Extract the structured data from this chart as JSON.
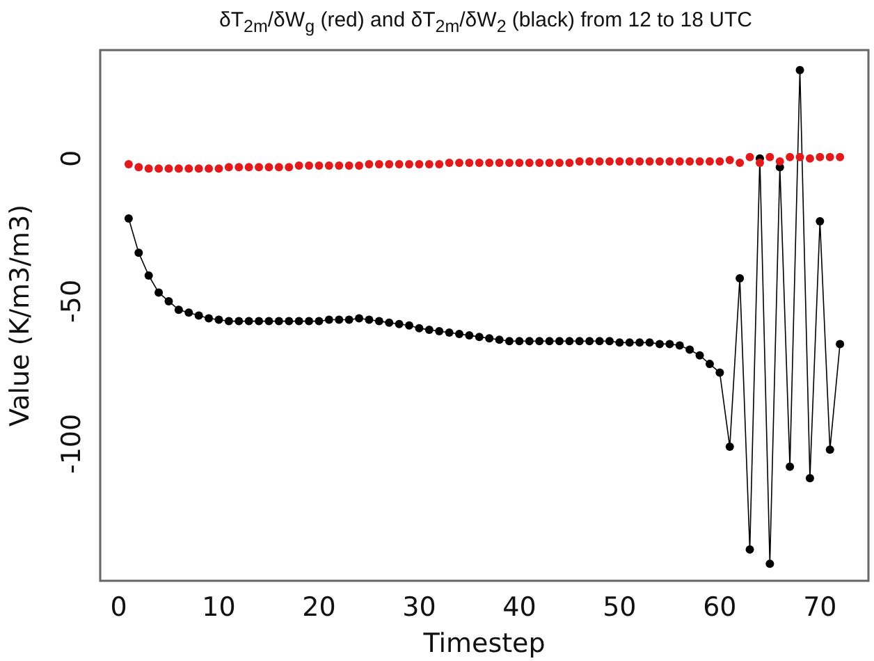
{
  "chart_data": {
    "type": "line",
    "title": "δT$_{2m}$/δW$_{g}$ (red) and δT$_{2m}$/δW$_{2}$ (black) from 12 to 18 UTC",
    "xlabel": "Timestep",
    "ylabel": "Value (K/m3/m3)",
    "x": [
      1,
      2,
      3,
      4,
      5,
      6,
      7,
      8,
      9,
      10,
      11,
      12,
      13,
      14,
      15,
      16,
      17,
      18,
      19,
      20,
      21,
      22,
      23,
      24,
      25,
      26,
      27,
      28,
      29,
      30,
      31,
      32,
      33,
      34,
      35,
      36,
      37,
      38,
      39,
      40,
      41,
      42,
      43,
      44,
      45,
      46,
      47,
      48,
      49,
      50,
      51,
      52,
      53,
      54,
      55,
      56,
      57,
      58,
      59,
      60,
      61,
      62,
      63,
      64,
      65,
      66,
      67,
      68,
      69,
      70,
      71,
      72
    ],
    "series": [
      {
        "type": "scatter",
        "color": "#e31a1c",
        "values": [
          -2,
          -3,
          -3.5,
          -3.5,
          -3.5,
          -3.5,
          -3.5,
          -3.5,
          -3.5,
          -3.5,
          -3,
          -3,
          -3,
          -3,
          -3,
          -3,
          -3,
          -2.5,
          -2.5,
          -2.5,
          -2.5,
          -2.5,
          -2.5,
          -2.5,
          -2,
          -2,
          -2,
          -2,
          -2,
          -2,
          -2,
          -2,
          -1.5,
          -1.5,
          -1.5,
          -1.5,
          -1.5,
          -1.5,
          -1.5,
          -1.5,
          -1.5,
          -1.5,
          -1.5,
          -1.5,
          -1.5,
          -1,
          -1,
          -1,
          -1,
          -1,
          -1,
          -1,
          -1,
          -1,
          -1,
          -1,
          -1,
          -1,
          -1,
          -1,
          -0.5,
          -1.5,
          0.5,
          -1.5,
          0.5,
          -1,
          0.5,
          0.5,
          0,
          0.5,
          0.5,
          0.5
        ]
      },
      {
        "type": "line",
        "color": "#000000",
        "values": [
          -21,
          -33,
          -41,
          -47,
          -50,
          -53,
          -54,
          -55,
          -56,
          -56.5,
          -57,
          -57,
          -57,
          -57,
          -57,
          -57,
          -57,
          -57,
          -57,
          -57,
          -56.5,
          -56.5,
          -56.5,
          -56,
          -56.5,
          -57,
          -57.5,
          -58,
          -58.5,
          -59.5,
          -60,
          -60.5,
          -61,
          -61.5,
          -62,
          -62.5,
          -63,
          -63.5,
          -64,
          -64,
          -64,
          -64,
          -64,
          -64,
          -64,
          -64,
          -64,
          -64,
          -64,
          -64.5,
          -64.5,
          -64.5,
          -64.5,
          -65,
          -65,
          -65.5,
          -67,
          -69,
          -72,
          -75,
          -101,
          -42,
          -137,
          0,
          -142,
          -3,
          -108,
          31,
          -112,
          -22,
          -102,
          -65
        ]
      }
    ],
    "xlim": [
      -1.84,
      74.84
    ],
    "xticks": [
      0,
      10,
      20,
      30,
      40,
      50,
      60,
      70
    ],
    "ylim": [
      -148,
      38
    ],
    "yticks": [
      -100,
      -50,
      0
    ],
    "grid": false,
    "legend": false,
    "marker": "circle",
    "line_style": "solid"
  }
}
